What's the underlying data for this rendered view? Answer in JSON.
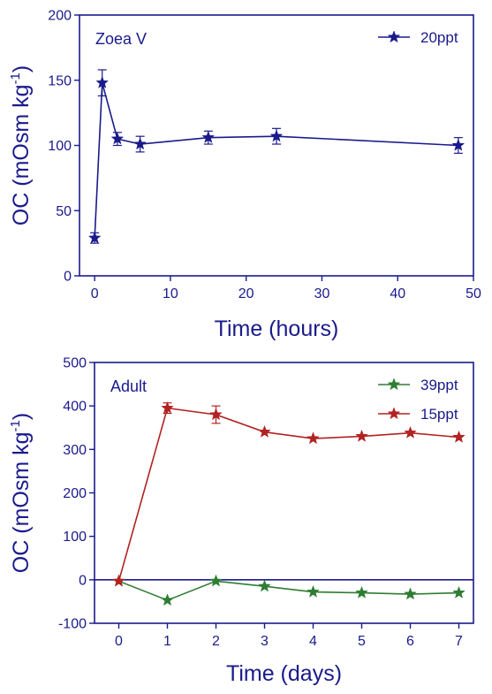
{
  "colors": {
    "axis": "#1a1a8c",
    "zoea_series": "#1a1a8c",
    "adult_39": "#2e7d32",
    "adult_15": "#b22222"
  },
  "chart_data": [
    {
      "type": "line",
      "panel_label": "Zoea V",
      "xlabel": "Time (hours)",
      "ylabel_main": "OC (mOsm kg",
      "ylabel_sup": "-1",
      "ylabel_close": ")",
      "xlim": [
        -2,
        50
      ],
      "ylim": [
        0,
        200
      ],
      "xticks": [
        0,
        10,
        20,
        30,
        40,
        50
      ],
      "yticks": [
        0,
        50,
        100,
        150,
        200
      ],
      "legend_position": "top-right",
      "grid": false,
      "series": [
        {
          "name": "20ppt",
          "color": "#1a1a8c",
          "x": [
            0,
            1,
            3,
            6,
            15,
            24,
            48
          ],
          "y": [
            29,
            148,
            105,
            101,
            106,
            107,
            100
          ],
          "err": [
            4,
            10,
            5,
            6,
            5,
            6,
            6
          ]
        }
      ]
    },
    {
      "type": "line",
      "panel_label": "Adult",
      "xlabel": "Time (days)",
      "ylabel_main": "OC (mOsm kg",
      "ylabel_sup": "-1",
      "ylabel_close": ")",
      "xlim": [
        -0.5,
        7.3
      ],
      "ylim": [
        -100,
        500
      ],
      "xticks": [
        0,
        1,
        2,
        3,
        4,
        5,
        6,
        7
      ],
      "yticks": [
        -100,
        0,
        100,
        200,
        300,
        400,
        500
      ],
      "zero_line": true,
      "legend_position": "top-right",
      "grid": false,
      "series": [
        {
          "name": "39ppt",
          "color": "#2e7d32",
          "x": [
            0,
            1,
            2,
            3,
            4,
            5,
            6,
            7
          ],
          "y": [
            -3,
            -47,
            -3,
            -15,
            -28,
            -30,
            -33,
            -30
          ],
          "err": [
            0,
            0,
            0,
            0,
            0,
            0,
            0,
            0
          ]
        },
        {
          "name": "15ppt",
          "color": "#b22222",
          "x": [
            0,
            1,
            2,
            3,
            4,
            5,
            6,
            7
          ],
          "y": [
            -3,
            395,
            380,
            340,
            325,
            330,
            338,
            328
          ],
          "err": [
            0,
            12,
            20,
            0,
            0,
            0,
            0,
            0
          ]
        }
      ]
    }
  ]
}
